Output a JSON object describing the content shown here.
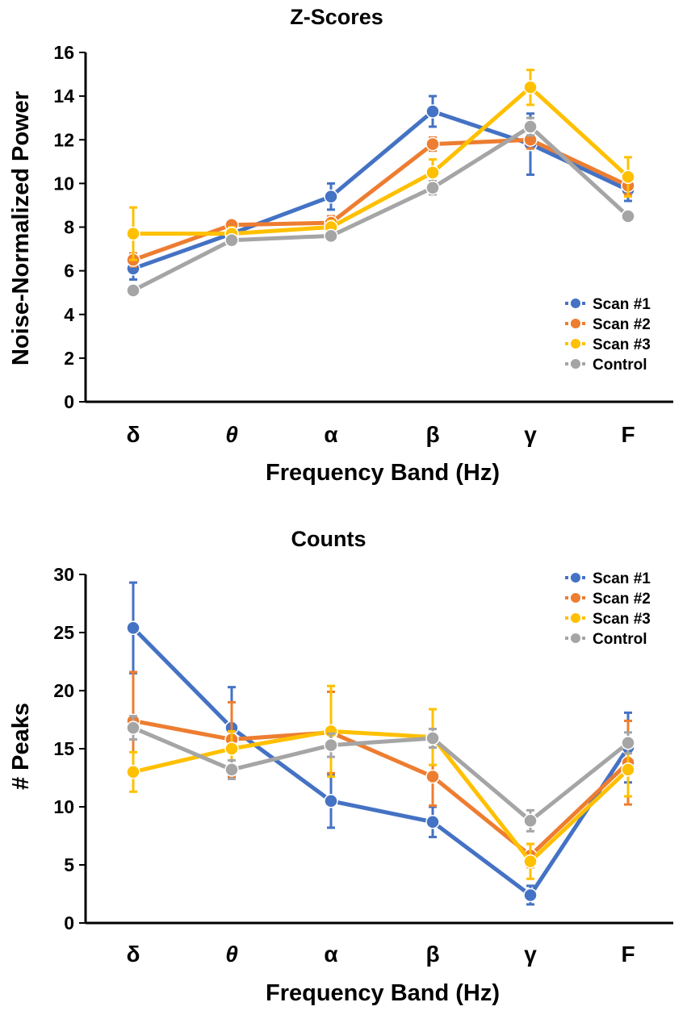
{
  "chart_data": [
    {
      "type": "line",
      "title": "Z-Scores",
      "xlabel": "Frequency Band (Hz)",
      "ylabel": "Noise-Normalized Power",
      "categories": [
        "δ",
        "θ",
        "α",
        "β",
        "γ",
        "F"
      ],
      "ylim": [
        0,
        16
      ],
      "yticks": [
        0,
        2,
        4,
        6,
        8,
        10,
        12,
        14,
        16
      ],
      "legend_position": "bottom-right",
      "series": [
        {
          "name": "Scan #1",
          "color": "#4472C4",
          "values": [
            6.1,
            7.7,
            9.4,
            13.3,
            11.8,
            9.7
          ],
          "errors": [
            0.5,
            0.2,
            0.6,
            0.7,
            1.4,
            0.5
          ]
        },
        {
          "name": "Scan #2",
          "color": "#ED7D31",
          "values": [
            6.5,
            8.1,
            8.2,
            11.8,
            12.0,
            9.9
          ],
          "errors": [
            0.3,
            0.2,
            0.3,
            0.3,
            0.4,
            0.4
          ]
        },
        {
          "name": "Scan #3",
          "color": "#FFC000",
          "values": [
            7.7,
            7.7,
            8.0,
            10.5,
            14.4,
            10.3
          ],
          "errors": [
            1.2,
            0.3,
            0.3,
            0.6,
            0.8,
            0.9
          ]
        },
        {
          "name": "Control",
          "color": "#A5A5A5",
          "values": [
            5.1,
            7.4,
            7.6,
            9.8,
            12.6,
            8.5
          ],
          "errors": [
            0.2,
            0.2,
            0.2,
            0.3,
            0.4,
            0.2
          ]
        }
      ]
    },
    {
      "type": "line",
      "title": "Counts",
      "xlabel": "Frequency Band (Hz)",
      "ylabel": "# Peaks",
      "categories": [
        "δ",
        "θ",
        "α",
        "β",
        "γ",
        "F"
      ],
      "ylim": [
        0,
        30
      ],
      "yticks": [
        0,
        5,
        10,
        15,
        20,
        25,
        30
      ],
      "legend_position": "top-right",
      "series": [
        {
          "name": "Scan #1",
          "color": "#4472C4",
          "values": [
            25.4,
            16.8,
            10.5,
            8.7,
            2.4,
            15.1
          ],
          "errors": [
            3.9,
            3.5,
            2.3,
            1.3,
            0.8,
            3.0
          ]
        },
        {
          "name": "Scan #2",
          "color": "#ED7D31",
          "values": [
            17.4,
            15.8,
            16.4,
            12.6,
            5.8,
            13.8
          ],
          "errors": [
            4.2,
            3.2,
            3.5,
            2.5,
            1.0,
            3.6
          ]
        },
        {
          "name": "Scan #3",
          "color": "#FFC000",
          "values": [
            13.0,
            15.0,
            16.5,
            16.0,
            5.3,
            13.2
          ],
          "errors": [
            1.7,
            1.5,
            3.9,
            2.4,
            1.5,
            2.3
          ]
        },
        {
          "name": "Control",
          "color": "#A5A5A5",
          "values": [
            16.8,
            13.2,
            15.3,
            15.9,
            8.8,
            15.5
          ],
          "errors": [
            1.0,
            0.8,
            1.0,
            0.8,
            0.9,
            0.9
          ]
        }
      ]
    }
  ]
}
